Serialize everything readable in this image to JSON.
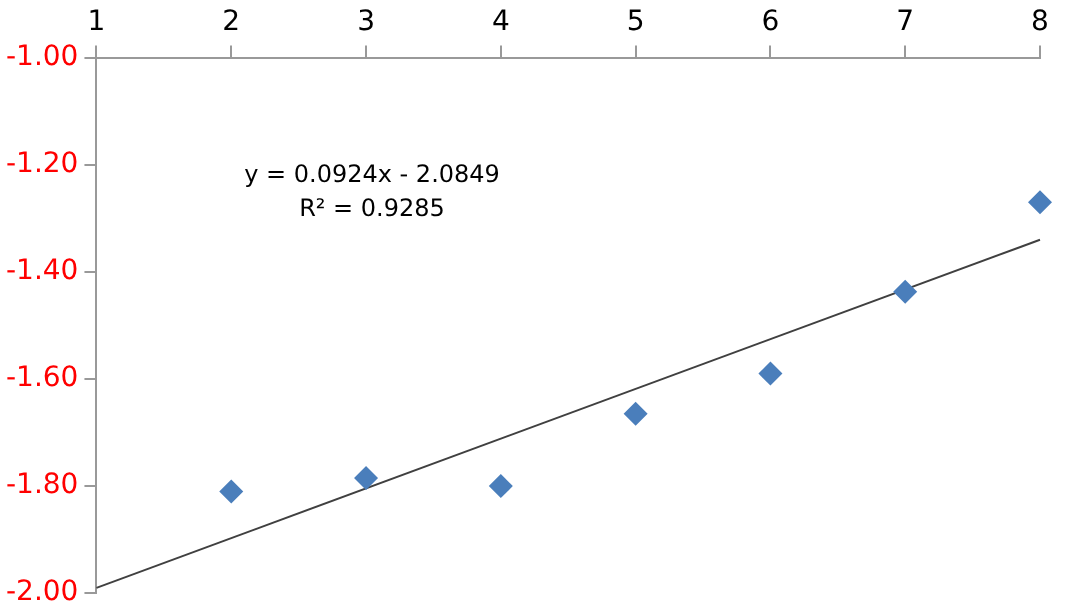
{
  "chart_data": {
    "type": "scatter",
    "x": [
      2,
      3,
      4,
      5,
      6,
      7,
      8
    ],
    "series": [
      {
        "color": "#4a7ebb",
        "marker": "diamond",
        "values": [
          -1.81,
          -1.785,
          -1.8,
          -1.665,
          -1.59,
          -1.437,
          -1.27
        ]
      },
      {
        "type": "line",
        "color": "#404040",
        "marker": "none",
        "x": [
          1,
          8
        ],
        "values": [
          -1.99,
          -1.34
        ]
      }
    ],
    "xlim": [
      1,
      8
    ],
    "xticks": [
      1,
      2,
      3,
      4,
      5,
      6,
      7,
      8
    ],
    "ylim": [
      -2,
      -1
    ],
    "yticks": [
      {
        "value": -2,
        "label": "-2.00"
      },
      {
        "value": -1.8,
        "label": "-1.80"
      },
      {
        "value": -1.6,
        "label": "-1.60"
      },
      {
        "value": -1.4,
        "label": "-1.40"
      },
      {
        "value": -1.2,
        "label": "-1.20"
      },
      {
        "value": -1,
        "label": "-1.00"
      }
    ],
    "annotations": [
      "y = 0.0924x - 2.0849",
      "R² = 0.9285"
    ],
    "grid": false,
    "legend": false
  }
}
